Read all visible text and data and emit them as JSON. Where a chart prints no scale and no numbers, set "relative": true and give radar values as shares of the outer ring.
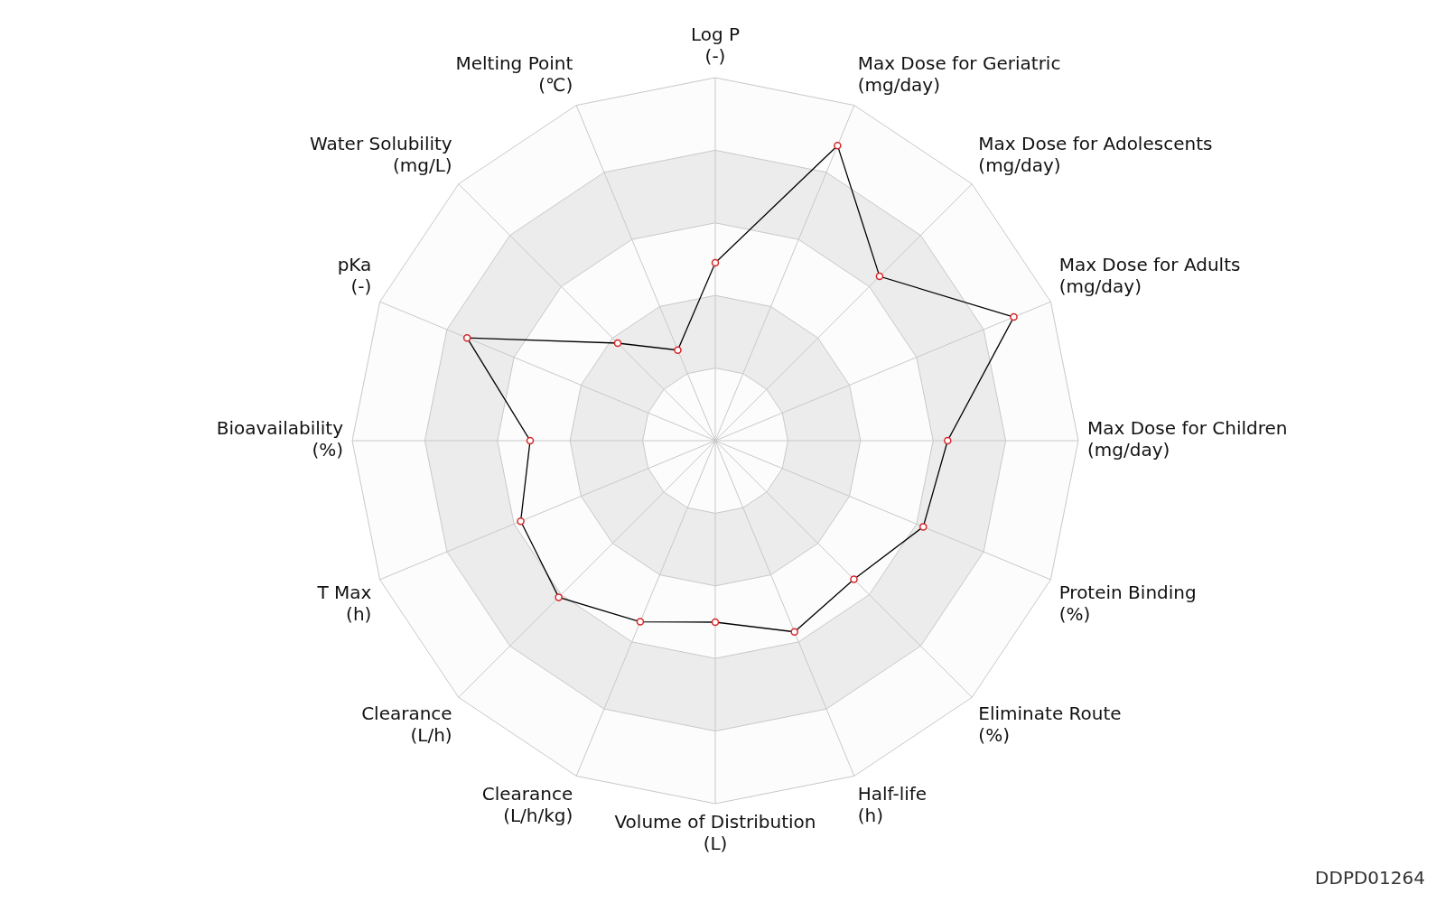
{
  "chart_data": {
    "type": "radar",
    "relative": true,
    "grid": true,
    "marker": "circle",
    "legend": false,
    "categories": [
      "Log P\n(-)",
      "Max Dose for Geriatric\n(mg/day)",
      "Max Dose for Adolescents\n(mg/day)",
      "Max Dose for Adults\n(mg/day)",
      "Max Dose for Children\n(mg/day)",
      "Protein Binding\n(%)",
      "Eliminate Route\n(%)",
      "Half-life\n(h)",
      "Volume of Distribution\n(L)",
      "Clearance\n(L/h/kg)",
      "Clearance\n(L/h)",
      "T Max\n(h)",
      "Bioavailability\n(%)",
      "pKa\n(-)",
      "Water Solubility\n(mg/L)",
      "Melting Point\n(℃)"
    ],
    "series": [
      {
        "color": "#000000",
        "values": [
          0.49,
          0.88,
          0.64,
          0.89,
          0.64,
          0.62,
          0.54,
          0.57,
          0.5,
          0.54,
          0.61,
          0.58,
          0.51,
          0.74,
          0.38,
          0.27
        ]
      }
    ],
    "annotations": [
      "DDPD01264"
    ]
  }
}
